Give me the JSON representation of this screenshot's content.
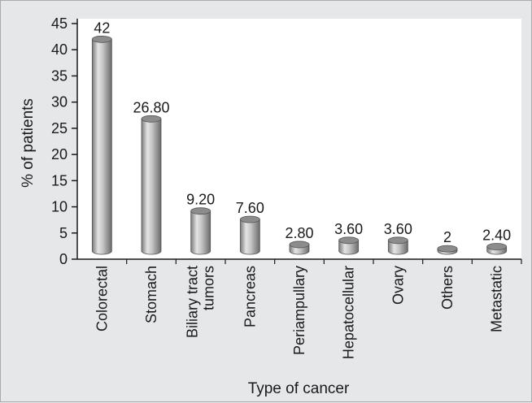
{
  "chart_data": {
    "type": "bar",
    "title": "",
    "xlabel": "Type of cancer",
    "ylabel": "% of patients",
    "ylim": [
      0,
      45
    ],
    "yticks": [
      0,
      5,
      10,
      15,
      20,
      25,
      30,
      35,
      40,
      45
    ],
    "categories": [
      [
        "Colorectal"
      ],
      [
        "Stomach"
      ],
      [
        "Biliary tract",
        "tumors"
      ],
      [
        "Pancreas"
      ],
      [
        "Periampullary"
      ],
      [
        "Hepatocellular"
      ],
      [
        "Ovary"
      ],
      [
        "Others"
      ],
      [
        "Metastatic"
      ]
    ],
    "values": [
      42,
      26.8,
      9.2,
      7.6,
      2.8,
      3.6,
      3.6,
      2,
      2.4
    ],
    "data_labels": [
      "42",
      "26.80",
      "9.20",
      "7.60",
      "2.80",
      "3.60",
      "3.60",
      "2",
      "2.40"
    ],
    "grid": false,
    "bar_style": "3d-cylinder",
    "colors": {
      "background": "#e6e7e9",
      "plot_background": "#ffffff",
      "bar_light": "#e2e2e2",
      "bar_mid": "#b4b4b4",
      "bar_dark": "#6e6e6e",
      "bar_top": "#8c8c8c",
      "axis": "#1a1a1a"
    }
  }
}
